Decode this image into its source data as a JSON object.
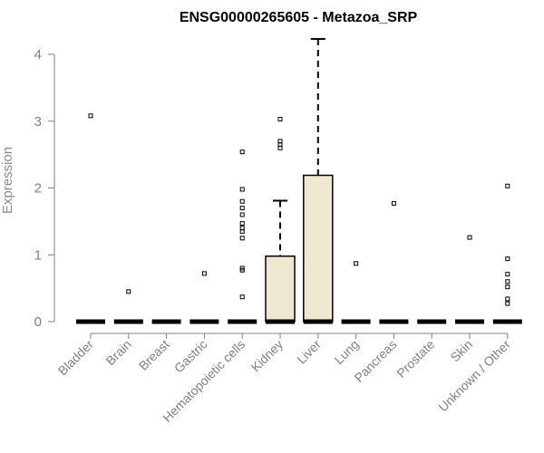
{
  "chart_data": {
    "type": "boxplot",
    "title": "ENSG00000265605 - Metazoa_SRP",
    "ylabel": "Expression",
    "xlabel": "",
    "ylim": [
      0,
      4
    ],
    "yticks": [
      0,
      1,
      2,
      3,
      4
    ],
    "grid": false,
    "box_color": "#ede8cf",
    "categories": [
      "Bladder",
      "Brain",
      "Breast",
      "Gastric",
      "Hematopoietic cells",
      "Kidney",
      "Liver",
      "Lung",
      "Pancreas",
      "Prostate",
      "Skin",
      "Unknown / Other"
    ],
    "boxes": [
      {
        "category": "Bladder",
        "q1": 0,
        "median": 0,
        "q3": 0,
        "whisker_low": 0,
        "whisker_high": 0,
        "outliers": [
          3.08
        ]
      },
      {
        "category": "Brain",
        "q1": 0,
        "median": 0,
        "q3": 0,
        "whisker_low": 0,
        "whisker_high": 0,
        "outliers": [
          0.45
        ]
      },
      {
        "category": "Breast",
        "q1": 0,
        "median": 0,
        "q3": 0,
        "whisker_low": 0,
        "whisker_high": 0,
        "outliers": []
      },
      {
        "category": "Gastric",
        "q1": 0,
        "median": 0,
        "q3": 0,
        "whisker_low": 0,
        "whisker_high": 0,
        "outliers": [
          0.72
        ]
      },
      {
        "category": "Hematopoietic cells",
        "q1": 0,
        "median": 0,
        "q3": 0,
        "whisker_low": 0,
        "whisker_high": 0,
        "outliers": [
          2.54,
          1.98,
          1.8,
          1.7,
          1.6,
          1.47,
          1.4,
          1.35,
          1.25,
          0.8,
          0.77,
          0.37
        ]
      },
      {
        "category": "Kidney",
        "q1": 0,
        "median": 0,
        "q3": 0.98,
        "whisker_low": 0,
        "whisker_high": 1.81,
        "outliers": [
          3.03,
          2.7,
          2.65,
          2.6
        ]
      },
      {
        "category": "Liver",
        "q1": 0,
        "median": 0,
        "q3": 2.19,
        "whisker_low": 0,
        "whisker_high": 4.23,
        "outliers": []
      },
      {
        "category": "Lung",
        "q1": 0,
        "median": 0,
        "q3": 0,
        "whisker_low": 0,
        "whisker_high": 0,
        "outliers": [
          0.87
        ]
      },
      {
        "category": "Pancreas",
        "q1": 0,
        "median": 0,
        "q3": 0,
        "whisker_low": 0,
        "whisker_high": 0,
        "outliers": [
          1.77
        ]
      },
      {
        "category": "Prostate",
        "q1": 0,
        "median": 0,
        "q3": 0,
        "whisker_low": 0,
        "whisker_high": 0,
        "outliers": []
      },
      {
        "category": "Skin",
        "q1": 0,
        "median": 0,
        "q3": 0,
        "whisker_low": 0,
        "whisker_high": 0,
        "outliers": [
          1.26
        ]
      },
      {
        "category": "Unknown / Other",
        "q1": 0,
        "median": 0,
        "q3": 0,
        "whisker_low": 0,
        "whisker_high": 0,
        "outliers": [
          2.03,
          0.94,
          0.71,
          0.6,
          0.52,
          0.34,
          0.27
        ]
      }
    ]
  }
}
